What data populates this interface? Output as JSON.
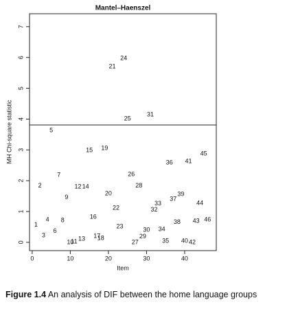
{
  "chart_data": {
    "type": "scatter",
    "title": "Mantel–Haenszel",
    "xlabel": "Item",
    "ylabel": "MH Chi-square statistic",
    "caption_label": "Figure 1.4",
    "caption": "An analysis of DIF between the home language groups",
    "x": [
      1,
      2,
      3,
      4,
      5,
      6,
      7,
      8,
      9,
      10,
      11,
      12,
      13,
      14,
      15,
      16,
      17,
      18,
      19,
      20,
      21,
      22,
      23,
      24,
      25,
      26,
      27,
      28,
      29,
      30,
      31,
      32,
      33,
      34,
      35,
      36,
      37,
      38,
      39,
      40,
      41,
      42,
      43,
      44,
      45,
      46
    ],
    "values": [
      0.56,
      1.83,
      0.22,
      0.73,
      3.63,
      0.36,
      2.18,
      0.71,
      1.45,
      0.0,
      0.02,
      1.8,
      0.11,
      1.8,
      2.98,
      0.82,
      0.2,
      0.13,
      3.05,
      1.58,
      5.7,
      1.11,
      0.51,
      5.97,
      4.01,
      2.2,
      0.0,
      1.83,
      0.18,
      0.4,
      4.14,
      1.05,
      1.25,
      0.42,
      0.04,
      2.58,
      1.4,
      0.65,
      1.56,
      0.04,
      2.63,
      0.0,
      0.69,
      1.27,
      2.87,
      0.73
    ],
    "hline": 3.81,
    "color": "#111111",
    "xlim": [
      -0.7,
      48.3
    ],
    "ylim": [
      -0.27,
      7.42
    ],
    "xticks": [
      0,
      10,
      20,
      30,
      40
    ],
    "yticks": [
      0,
      1,
      2,
      3,
      4,
      5,
      6,
      7
    ]
  }
}
